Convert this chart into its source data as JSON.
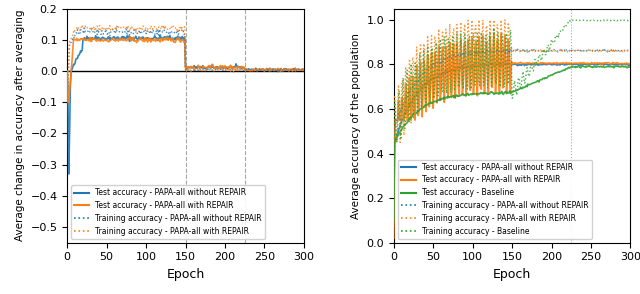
{
  "left_ylabel": "Average change in accuracy after averaging",
  "right_ylabel": "Average accuracy of the population",
  "xlabel": "Epoch",
  "left_ylim": [
    -0.55,
    0.2
  ],
  "right_ylim": [
    0.0,
    1.05
  ],
  "xlim": [
    0,
    300
  ],
  "xticks": [
    0,
    50,
    100,
    150,
    200,
    250,
    300
  ],
  "left_vlines": [
    150,
    225
  ],
  "right_vlines": [
    225
  ],
  "color_blue": "#1f77b4",
  "color_orange": "#ff7f0e",
  "color_green": "#2ca02c",
  "hline_y": 0.0,
  "seed": 42,
  "figsize": [
    6.4,
    2.94
  ],
  "dpi": 100
}
